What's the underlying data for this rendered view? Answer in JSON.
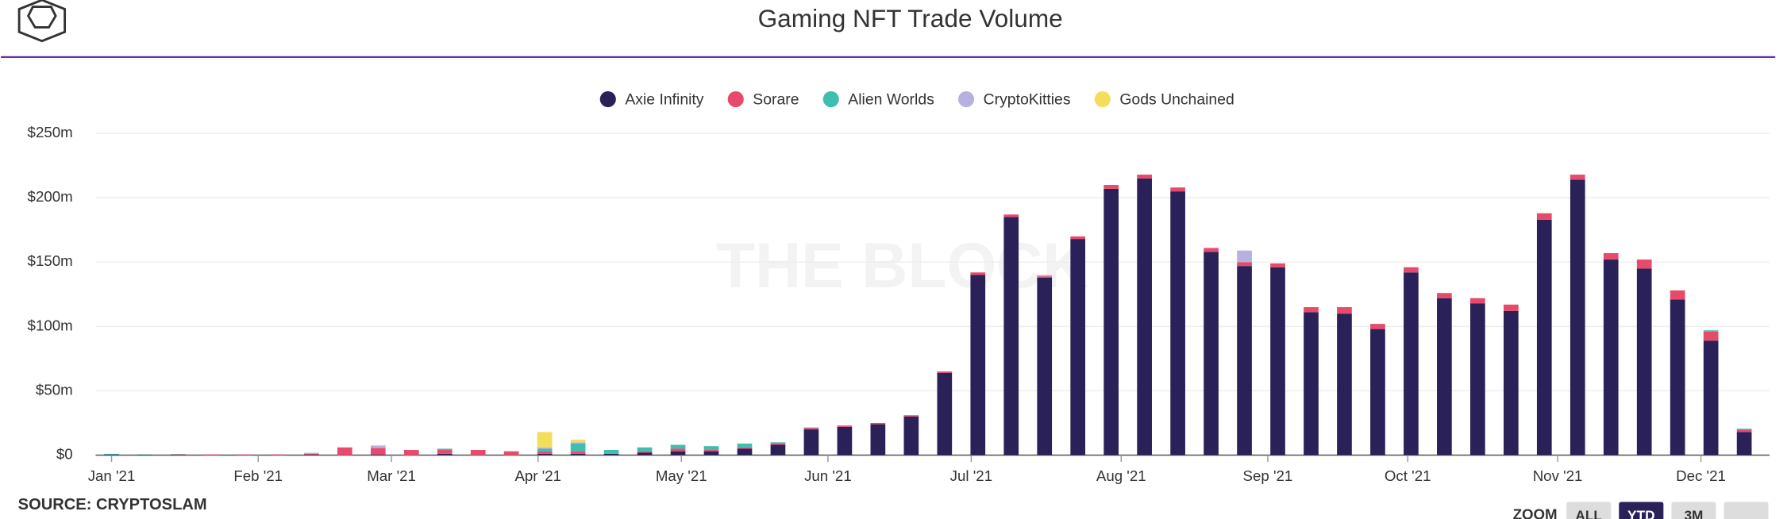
{
  "chart_data": {
    "type": "bar",
    "stacked": true,
    "title": "Gaming NFT Trade Volume",
    "watermark": "THE BLOCK",
    "source": "SOURCE: CRYPTOSLAM",
    "zoom": {
      "label": "ZOOM",
      "buttons": [
        "ALL",
        "YTD",
        "3M"
      ],
      "active": "YTD"
    },
    "x": [
      0,
      1,
      2,
      3,
      4,
      5,
      6,
      7,
      8,
      9,
      10,
      11,
      12,
      13,
      14,
      15,
      16,
      17,
      18,
      19,
      20,
      21,
      22,
      23,
      24,
      25,
      26,
      27,
      28,
      29,
      30,
      31,
      32,
      33,
      34,
      35,
      36,
      37,
      38,
      39,
      40,
      41,
      42,
      43,
      44,
      45,
      46,
      47,
      48,
      49
    ],
    "xlim": [
      -0.5,
      49.7
    ],
    "xticks": [
      {
        "value": 0,
        "label": "Jan '21"
      },
      {
        "value": 4.4,
        "label": "Feb '21"
      },
      {
        "value": 8.4,
        "label": "Mar '21"
      },
      {
        "value": 12.8,
        "label": "Apr '21"
      },
      {
        "value": 17.1,
        "label": "May '21"
      },
      {
        "value": 21.5,
        "label": "Jun '21"
      },
      {
        "value": 25.8,
        "label": "Jul '21"
      },
      {
        "value": 30.3,
        "label": "Aug '21"
      },
      {
        "value": 34.7,
        "label": "Sep '21"
      },
      {
        "value": 38.9,
        "label": "Oct '21"
      },
      {
        "value": 43.4,
        "label": "Nov '21"
      },
      {
        "value": 47.7,
        "label": "Dec '21"
      }
    ],
    "ylim": [
      0,
      250
    ],
    "yticks": [
      {
        "value": 0,
        "label": "$0"
      },
      {
        "value": 50,
        "label": "$50m"
      },
      {
        "value": 100,
        "label": "$100m"
      },
      {
        "value": 150,
        "label": "$150m"
      },
      {
        "value": 200,
        "label": "$200m"
      },
      {
        "value": 250,
        "label": "$250m"
      }
    ],
    "grid": true,
    "legend": "top",
    "series": [
      {
        "name": "Axie Infinity",
        "color": "#2b2159",
        "values": [
          0.5,
          0.3,
          0.3,
          0,
          0,
          0,
          0.5,
          0,
          0.5,
          0,
          1,
          0,
          0,
          1,
          1,
          1,
          2,
          3,
          3,
          5,
          8,
          20,
          22,
          24,
          30,
          64,
          140,
          185,
          138,
          168,
          207,
          215,
          205,
          158,
          147,
          146,
          111,
          110,
          98,
          142,
          122,
          118,
          112,
          183,
          214,
          152,
          145,
          121,
          89,
          18
        ]
      },
      {
        "name": "Sorare",
        "color": "#e84a6b",
        "values": [
          0,
          0,
          0.3,
          0.5,
          0.5,
          0.5,
          0.5,
          6,
          5,
          4,
          3,
          4,
          3,
          2,
          2,
          0,
          1,
          2,
          1,
          1,
          1,
          1,
          1,
          1,
          1,
          1,
          2,
          2,
          1,
          2,
          3,
          3,
          3,
          3,
          3,
          3,
          4,
          5,
          4,
          4,
          4,
          4,
          5,
          5,
          4,
          5,
          7,
          7,
          7,
          2
        ]
      },
      {
        "name": "Alien Worlds",
        "color": "#3dbfb0",
        "values": [
          0.5,
          0.2,
          0.2,
          0,
          0,
          0,
          0.3,
          0,
          0,
          0,
          1,
          0,
          0,
          2,
          6,
          3,
          3,
          3,
          3,
          3,
          1,
          0.5,
          0,
          0,
          0,
          0,
          0,
          0,
          0,
          0,
          0,
          0,
          0,
          0,
          0,
          0,
          0,
          0,
          0,
          0,
          0,
          0,
          0,
          0,
          0,
          0,
          0,
          0,
          1,
          0.5
        ]
      },
      {
        "name": "CryptoKitties",
        "color": "#b7b1df",
        "values": [
          0,
          0,
          0,
          0,
          0,
          0,
          0.5,
          0,
          2,
          0,
          0,
          0,
          0,
          1,
          1,
          0,
          0,
          0,
          0,
          0,
          0,
          0,
          0,
          0,
          0,
          0,
          0,
          0,
          1,
          0,
          0,
          0,
          0,
          0,
          9,
          0,
          0,
          0,
          0,
          0,
          0,
          0,
          0,
          0,
          0,
          0,
          0,
          0,
          0,
          0
        ]
      },
      {
        "name": "Gods Unchained",
        "color": "#f5dd5c",
        "values": [
          0,
          0,
          0,
          0,
          0,
          0,
          0,
          0,
          0,
          0,
          0,
          0,
          0,
          12,
          2,
          0,
          0,
          0,
          0,
          0,
          0,
          0,
          0,
          0,
          0,
          0,
          0,
          0,
          0,
          0,
          0,
          0,
          0,
          0,
          0,
          0,
          0,
          0,
          0,
          0,
          0,
          0,
          0,
          0,
          0,
          0,
          0,
          0,
          0,
          0
        ]
      }
    ]
  }
}
